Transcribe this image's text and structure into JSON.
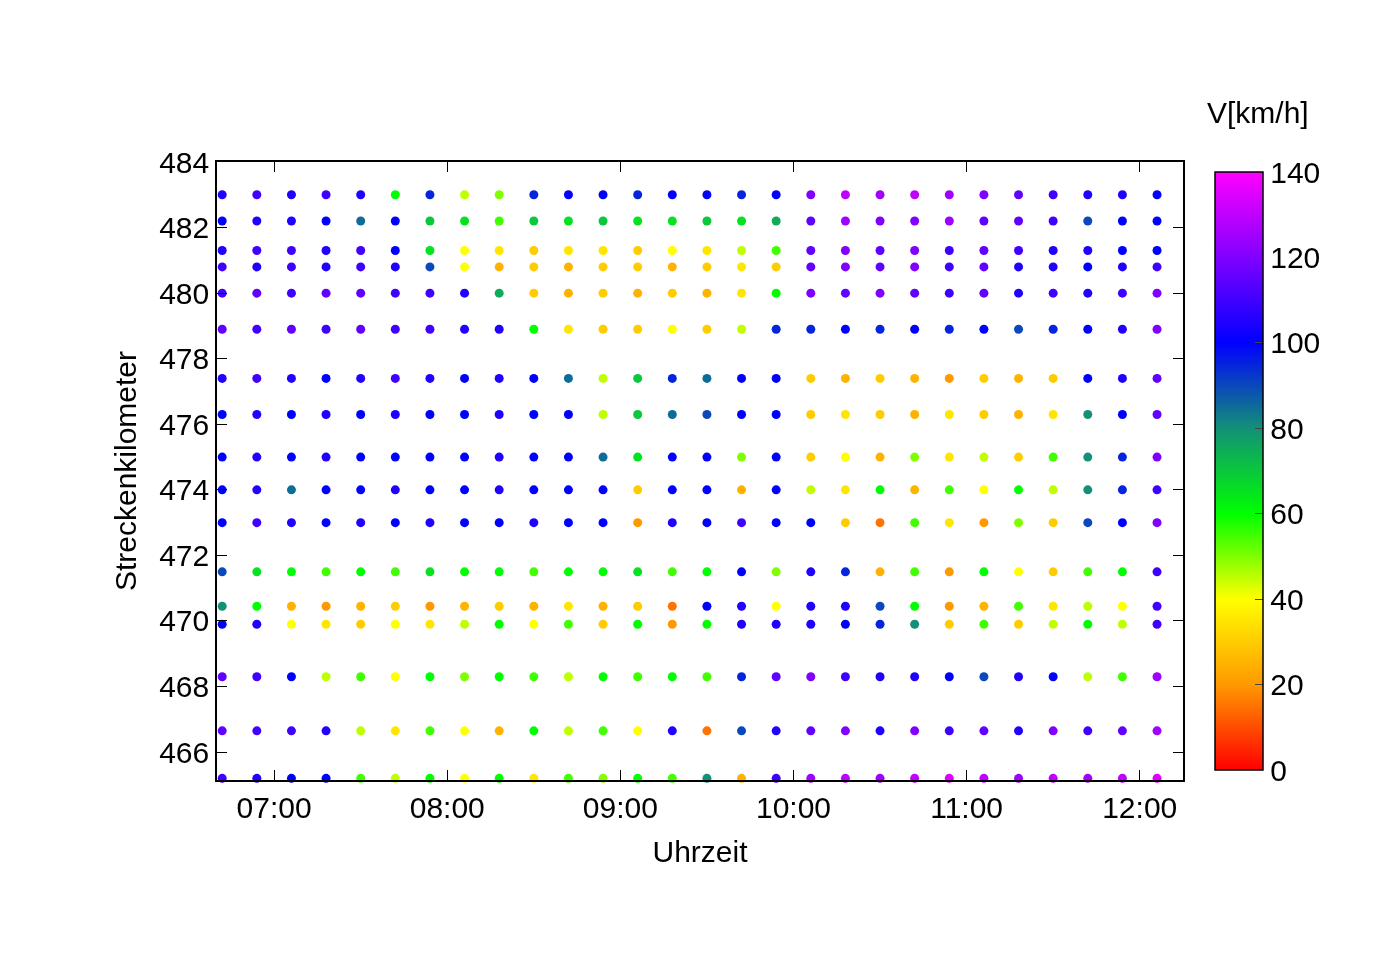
{
  "chart_data": {
    "type": "scatter",
    "xlabel": "Uhrzeit",
    "ylabel": "Streckenkilometer",
    "clabel": "V[km/h]",
    "marker": "circle",
    "xlim": [
      6.67,
      12.25
    ],
    "xticks": [
      {
        "value": 7,
        "label": "07:00"
      },
      {
        "value": 8,
        "label": "08:00"
      },
      {
        "value": 9,
        "label": "09:00"
      },
      {
        "value": 10,
        "label": "10:00"
      },
      {
        "value": 11,
        "label": "11:00"
      },
      {
        "value": 12,
        "label": "12:00"
      }
    ],
    "ylim": [
      465.15,
      484
    ],
    "yticks": [
      466,
      468,
      470,
      472,
      474,
      476,
      478,
      480,
      482,
      484
    ],
    "clim": [
      0,
      140
    ],
    "cticks": [
      0,
      20,
      40,
      60,
      80,
      100,
      120,
      140
    ],
    "x": [
      6.7,
      6.9,
      7.1,
      7.3,
      7.5,
      7.7,
      7.9,
      8.1,
      8.3,
      8.5,
      8.7,
      8.9,
      9.1,
      9.3,
      9.5,
      9.7,
      9.9,
      10.1,
      10.3,
      10.5,
      10.7,
      10.9,
      11.1,
      11.3,
      11.5,
      11.7,
      11.9,
      12.1,
      6.7,
      6.9,
      7.1,
      7.3,
      7.5,
      7.7,
      7.9,
      8.1,
      8.3,
      8.5,
      8.7,
      8.9,
      9.1,
      9.3,
      9.5,
      9.7,
      9.9,
      10.1,
      10.3,
      10.5,
      10.7,
      10.9,
      11.1,
      11.3,
      11.5,
      11.7,
      11.9,
      12.1,
      6.7,
      6.9,
      7.1,
      7.3,
      7.5,
      7.7,
      7.9,
      8.1,
      8.3,
      8.5,
      8.7,
      8.9,
      9.1,
      9.3,
      9.5,
      9.7,
      9.9,
      10.1,
      10.3,
      10.5,
      10.7,
      10.9,
      11.1,
      11.3,
      11.5,
      11.7,
      11.9,
      12.1,
      6.7,
      6.9,
      7.1,
      7.3,
      7.5,
      7.7,
      7.9,
      8.1,
      8.3,
      8.5,
      8.7,
      8.9,
      9.1,
      9.3,
      9.5,
      9.7,
      9.9,
      10.1,
      10.3,
      10.5,
      10.7,
      10.9,
      11.1,
      11.3,
      11.5,
      11.7,
      11.9,
      12.1,
      6.7,
      6.9,
      7.1,
      7.3,
      7.5,
      7.7,
      7.9,
      8.1,
      8.3,
      8.5,
      8.7,
      8.9,
      9.1,
      9.3,
      9.5,
      9.7,
      9.9,
      10.1,
      10.3,
      10.5,
      10.7,
      10.9,
      11.1,
      11.3,
      11.5,
      11.7,
      11.9,
      12.1,
      6.7,
      6.9,
      7.1,
      7.3,
      7.5,
      7.7,
      7.9,
      8.1,
      8.3,
      8.5,
      8.7,
      8.9,
      9.1,
      9.3,
      9.5,
      9.7,
      9.9,
      10.1,
      10.3,
      10.5,
      10.7,
      10.9,
      11.1,
      11.3,
      11.5,
      11.7,
      11.9,
      12.1,
      6.7,
      6.9,
      7.1,
      7.3,
      7.5,
      7.7,
      7.9,
      8.1,
      8.3,
      8.5,
      8.7,
      8.9,
      9.1,
      9.3,
      9.5,
      9.7,
      9.9,
      10.1,
      10.3,
      10.5,
      10.7,
      10.9,
      11.1,
      11.3,
      11.5,
      11.7,
      11.9,
      12.1,
      6.7,
      6.9,
      7.1,
      7.3,
      7.5,
      7.7,
      7.9,
      8.1,
      8.3,
      8.5,
      8.7,
      8.9,
      9.1,
      9.3,
      9.5,
      9.7,
      9.9,
      10.1,
      10.3,
      10.5,
      10.7,
      10.9,
      11.1,
      11.3,
      11.5,
      11.7,
      11.9,
      12.1,
      6.7,
      6.9,
      7.1,
      7.3,
      7.5,
      7.7,
      7.9,
      8.1,
      8.3,
      8.5,
      8.7,
      8.9,
      9.1,
      9.3,
      9.5,
      9.7,
      9.9,
      10.1,
      10.3,
      10.5,
      10.7,
      10.9,
      11.1,
      11.3,
      11.5,
      11.7,
      11.9,
      12.1,
      6.7,
      6.9,
      7.1,
      7.3,
      7.5,
      7.7,
      7.9,
      8.1,
      8.3,
      8.5,
      8.7,
      8.9,
      9.1,
      9.3,
      9.5,
      9.7,
      9.9,
      10.1,
      10.3,
      10.5,
      10.7,
      10.9,
      11.1,
      11.3,
      11.5,
      11.7,
      11.9,
      12.1,
      6.7,
      6.9,
      7.1,
      7.3,
      7.5,
      7.7,
      7.9,
      8.1,
      8.3,
      8.5,
      8.7,
      8.9,
      9.1,
      9.3,
      9.5,
      9.7,
      9.9,
      10.1,
      10.3,
      10.5,
      10.7,
      10.9,
      11.1,
      11.3,
      11.5,
      11.7,
      11.9,
      12.1,
      6.7,
      6.9,
      7.1,
      7.3,
      7.5,
      7.7,
      7.9,
      8.1,
      8.3,
      8.5,
      8.7,
      8.9,
      9.1,
      9.3,
      9.5,
      9.7,
      9.9,
      10.1,
      10.3,
      10.5,
      10.7,
      10.9,
      11.1,
      11.3,
      11.5,
      11.7,
      11.9,
      12.1,
      6.7,
      6.9,
      7.1,
      7.3,
      7.5,
      7.7,
      7.9,
      8.1,
      8.3,
      8.5,
      8.7,
      8.9,
      9.1,
      9.3,
      9.5,
      9.7,
      9.9,
      10.1,
      10.3,
      10.5,
      10.7,
      10.9,
      11.1,
      11.3,
      11.5,
      11.7,
      11.9,
      12.1,
      6.7,
      6.9,
      7.1,
      7.3,
      7.5,
      7.7,
      7.9,
      8.1,
      8.3,
      8.5,
      8.7,
      8.9,
      9.1,
      9.3,
      9.5,
      9.7,
      9.9,
      10.1,
      10.3,
      10.5,
      10.7,
      10.9,
      11.1,
      11.3,
      11.5,
      11.7,
      11.9,
      12.1,
      6.7,
      6.9,
      7.1,
      7.3,
      7.5,
      7.7,
      7.9,
      8.1,
      8.3,
      8.5,
      8.7,
      8.9,
      9.1,
      9.3,
      9.5,
      9.7,
      9.9,
      10.1,
      10.3,
      10.5,
      10.7,
      10.9,
      11.1,
      11.3,
      11.5,
      11.7,
      11.9,
      12.1,
      6.7,
      6.9,
      7.1,
      7.3,
      7.5,
      7.7,
      7.9,
      8.1,
      8.3,
      8.5,
      8.7,
      8.9,
      9.1,
      9.3,
      9.5,
      9.7,
      9.9,
      10.1,
      10.3,
      10.5,
      10.7,
      10.9,
      11.1,
      11.3,
      11.5,
      11.7,
      11.9,
      12.1,
      6.7,
      6.9,
      7.1,
      7.3,
      7.5,
      7.7,
      7.9,
      8.1,
      8.3,
      8.5,
      8.7,
      8.9,
      9.1,
      9.3,
      9.5,
      9.7,
      9.9,
      10.1,
      10.3,
      10.5,
      10.7,
      10.9,
      11.1,
      11.3,
      11.5,
      11.7,
      11.9,
      12.1
    ],
    "values": [
      483,
      483,
      483,
      483,
      483,
      483,
      483,
      483,
      483,
      483,
      483,
      483,
      483,
      483,
      483,
      483,
      483,
      483,
      483,
      483,
      483,
      483,
      483,
      483,
      483,
      483,
      483,
      483,
      482.2,
      482.2,
      482.2,
      482.2,
      482.2,
      482.2,
      482.2,
      482.2,
      482.2,
      482.2,
      482.2,
      482.2,
      482.2,
      482.2,
      482.2,
      482.2,
      482.2,
      482.2,
      482.2,
      482.2,
      482.2,
      482.2,
      482.2,
      482.2,
      482.2,
      482.2,
      482.2,
      482.2,
      481.3,
      481.3,
      481.3,
      481.3,
      481.3,
      481.3,
      481.3,
      481.3,
      481.3,
      481.3,
      481.3,
      481.3,
      481.3,
      481.3,
      481.3,
      481.3,
      481.3,
      481.3,
      481.3,
      481.3,
      481.3,
      481.3,
      481.3,
      481.3,
      481.3,
      481.3,
      481.3,
      481.3,
      480.8,
      480.8,
      480.8,
      480.8,
      480.8,
      480.8,
      480.8,
      480.8,
      480.8,
      480.8,
      480.8,
      480.8,
      480.8,
      480.8,
      480.8,
      480.8,
      480.8,
      480.8,
      480.8,
      480.8,
      480.8,
      480.8,
      480.8,
      480.8,
      480.8,
      480.8,
      480.8,
      480.8,
      480,
      480,
      480,
      480,
      480,
      480,
      480,
      480,
      480,
      480,
      480,
      480,
      480,
      480,
      480,
      480,
      480,
      480,
      480,
      480,
      480,
      480,
      480,
      480,
      480,
      480,
      480,
      480,
      478.9,
      478.9,
      478.9,
      478.9,
      478.9,
      478.9,
      478.9,
      478.9,
      478.9,
      478.9,
      478.9,
      478.9,
      478.9,
      478.9,
      478.9,
      478.9,
      478.9,
      478.9,
      478.9,
      478.9,
      478.9,
      478.9,
      478.9,
      478.9,
      478.9,
      478.9,
      478.9,
      478.9,
      477.4,
      477.4,
      477.4,
      477.4,
      477.4,
      477.4,
      477.4,
      477.4,
      477.4,
      477.4,
      477.4,
      477.4,
      477.4,
      477.4,
      477.4,
      477.4,
      477.4,
      477.4,
      477.4,
      477.4,
      477.4,
      477.4,
      477.4,
      477.4,
      477.4,
      477.4,
      477.4,
      477.4,
      476.3,
      476.3,
      476.3,
      476.3,
      476.3,
      476.3,
      476.3,
      476.3,
      476.3,
      476.3,
      476.3,
      476.3,
      476.3,
      476.3,
      476.3,
      476.3,
      476.3,
      476.3,
      476.3,
      476.3,
      476.3,
      476.3,
      476.3,
      476.3,
      476.3,
      476.3,
      476.3,
      476.3,
      475,
      475,
      475,
      475,
      475,
      475,
      475,
      475,
      475,
      475,
      475,
      475,
      475,
      475,
      475,
      475,
      475,
      475,
      475,
      475,
      475,
      475,
      475,
      475,
      475,
      475,
      475,
      475,
      474,
      474,
      474,
      474,
      474,
      474,
      474,
      474,
      474,
      474,
      474,
      474,
      474,
      474,
      474,
      474,
      474,
      474,
      474,
      474,
      474,
      474,
      474,
      474,
      474,
      474,
      474,
      474,
      473,
      473,
      473,
      473,
      473,
      473,
      473,
      473,
      473,
      473,
      473,
      473,
      473,
      473,
      473,
      473,
      473,
      473,
      473,
      473,
      473,
      473,
      473,
      473,
      473,
      473,
      473,
      473,
      471.5,
      471.5,
      471.5,
      471.5,
      471.5,
      471.5,
      471.5,
      471.5,
      471.5,
      471.5,
      471.5,
      471.5,
      471.5,
      471.5,
      471.5,
      471.5,
      471.5,
      471.5,
      471.5,
      471.5,
      471.5,
      471.5,
      471.5,
      471.5,
      471.5,
      471.5,
      471.5,
      471.5,
      470.45,
      470.45,
      470.45,
      470.45,
      470.45,
      470.45,
      470.45,
      470.45,
      470.45,
      470.45,
      470.45,
      470.45,
      470.45,
      470.45,
      470.45,
      470.45,
      470.45,
      470.45,
      470.45,
      470.45,
      470.45,
      470.45,
      470.45,
      470.45,
      470.45,
      470.45,
      470.45,
      470.45,
      469.9,
      469.9,
      469.9,
      469.9,
      469.9,
      469.9,
      469.9,
      469.9,
      469.9,
      469.9,
      469.9,
      469.9,
      469.9,
      469.9,
      469.9,
      469.9,
      469.9,
      469.9,
      469.9,
      469.9,
      469.9,
      469.9,
      469.9,
      469.9,
      469.9,
      469.9,
      469.9,
      469.9,
      468.3,
      468.3,
      468.3,
      468.3,
      468.3,
      468.3,
      468.3,
      468.3,
      468.3,
      468.3,
      468.3,
      468.3,
      468.3,
      468.3,
      468.3,
      468.3,
      468.3,
      468.3,
      468.3,
      468.3,
      468.3,
      468.3,
      468.3,
      468.3,
      468.3,
      468.3,
      468.3,
      468.3,
      466.65,
      466.65,
      466.65,
      466.65,
      466.65,
      466.65,
      466.65,
      466.65,
      466.65,
      466.65,
      466.65,
      466.65,
      466.65,
      466.65,
      466.65,
      466.65,
      466.65,
      466.65,
      466.65,
      466.65,
      466.65,
      466.65,
      466.65,
      466.65,
      466.65,
      466.65,
      466.65,
      466.65,
      465.2,
      465.2,
      465.2,
      465.2,
      465.2,
      465.2,
      465.2,
      465.2,
      465.2,
      465.2,
      465.2,
      465.2,
      465.2,
      465.2,
      465.2,
      465.2,
      465.2,
      465.2,
      465.2,
      465.2,
      465.2,
      465.2,
      465.2,
      465.2,
      465.2,
      465.2,
      465.2,
      465.2
    ],
    "cvalues": [
      105,
      110,
      105,
      110,
      105,
      60,
      95,
      45,
      50,
      95,
      100,
      100,
      95,
      100,
      100,
      95,
      100,
      120,
      130,
      125,
      130,
      125,
      120,
      115,
      110,
      105,
      105,
      100,
      100,
      105,
      105,
      100,
      85,
      100,
      70,
      65,
      55,
      70,
      65,
      70,
      65,
      65,
      70,
      65,
      75,
      115,
      125,
      120,
      120,
      125,
      115,
      115,
      110,
      90,
      100,
      100,
      105,
      110,
      110,
      105,
      110,
      100,
      65,
      40,
      35,
      30,
      35,
      35,
      30,
      40,
      35,
      45,
      55,
      115,
      120,
      115,
      120,
      110,
      115,
      110,
      105,
      105,
      100,
      100,
      110,
      105,
      110,
      105,
      110,
      105,
      90,
      40,
      25,
      30,
      25,
      30,
      30,
      25,
      30,
      35,
      30,
      115,
      120,
      115,
      120,
      110,
      115,
      105,
      105,
      100,
      105,
      110,
      110,
      115,
      110,
      115,
      115,
      110,
      110,
      105,
      75,
      30,
      25,
      30,
      25,
      30,
      25,
      35,
      60,
      120,
      115,
      120,
      115,
      110,
      115,
      105,
      110,
      105,
      110,
      120,
      115,
      110,
      115,
      110,
      115,
      110,
      110,
      105,
      105,
      60,
      35,
      30,
      30,
      40,
      30,
      45,
      95,
      95,
      100,
      95,
      100,
      95,
      100,
      90,
      95,
      100,
      105,
      120,
      105,
      110,
      105,
      100,
      105,
      110,
      105,
      100,
      105,
      100,
      85,
      45,
      70,
      95,
      85,
      100,
      100,
      30,
      25,
      30,
      25,
      20,
      30,
      25,
      30,
      100,
      105,
      115,
      100,
      105,
      100,
      105,
      100,
      105,
      100,
      100,
      105,
      100,
      100,
      45,
      70,
      85,
      90,
      100,
      100,
      30,
      35,
      30,
      25,
      35,
      30,
      25,
      35,
      80,
      100,
      115,
      100,
      105,
      100,
      105,
      100,
      100,
      100,
      100,
      105,
      100,
      100,
      85,
      65,
      100,
      100,
      50,
      100,
      30,
      40,
      25,
      50,
      35,
      45,
      30,
      55,
      80,
      95,
      120,
      100,
      105,
      85,
      100,
      100,
      105,
      100,
      100,
      105,
      100,
      100,
      100,
      30,
      100,
      100,
      25,
      100,
      45,
      35,
      60,
      25,
      55,
      40,
      60,
      45,
      80,
      95,
      110,
      100,
      110,
      105,
      100,
      105,
      100,
      105,
      100,
      100,
      105,
      100,
      100,
      20,
      105,
      100,
      110,
      100,
      100,
      30,
      15,
      55,
      35,
      20,
      50,
      30,
      90,
      100,
      120,
      90,
      65,
      60,
      55,
      60,
      55,
      65,
      60,
      60,
      55,
      60,
      60,
      65,
      55,
      60,
      100,
      50,
      105,
      95,
      25,
      55,
      20,
      60,
      40,
      30,
      55,
      60,
      110,
      80,
      60,
      25,
      20,
      25,
      30,
      20,
      25,
      30,
      25,
      35,
      25,
      30,
      15,
      100,
      105,
      40,
      105,
      105,
      90,
      60,
      20,
      25,
      55,
      35,
      45,
      40,
      110,
      100,
      105,
      40,
      35,
      30,
      40,
      35,
      45,
      60,
      40,
      55,
      30,
      60,
      20,
      60,
      105,
      105,
      105,
      100,
      95,
      80,
      30,
      55,
      30,
      45,
      60,
      45,
      110,
      115,
      110,
      100,
      45,
      55,
      40,
      60,
      50,
      60,
      55,
      45,
      60,
      55,
      60,
      55,
      95,
      115,
      120,
      110,
      105,
      105,
      100,
      90,
      105,
      100,
      45,
      55,
      125,
      115,
      110,
      110,
      105,
      45,
      35,
      55,
      40,
      25,
      60,
      45,
      55,
      40,
      105,
      15,
      90,
      105,
      115,
      120,
      105,
      120,
      110,
      115,
      105,
      120,
      110,
      115,
      125,
      110,
      105,
      100,
      100,
      55,
      45,
      60,
      40,
      60,
      35,
      55,
      50,
      60,
      55,
      80,
      25,
      110,
      125,
      130,
      125,
      130,
      135,
      130,
      125,
      130,
      125,
      130,
      135
    ]
  }
}
